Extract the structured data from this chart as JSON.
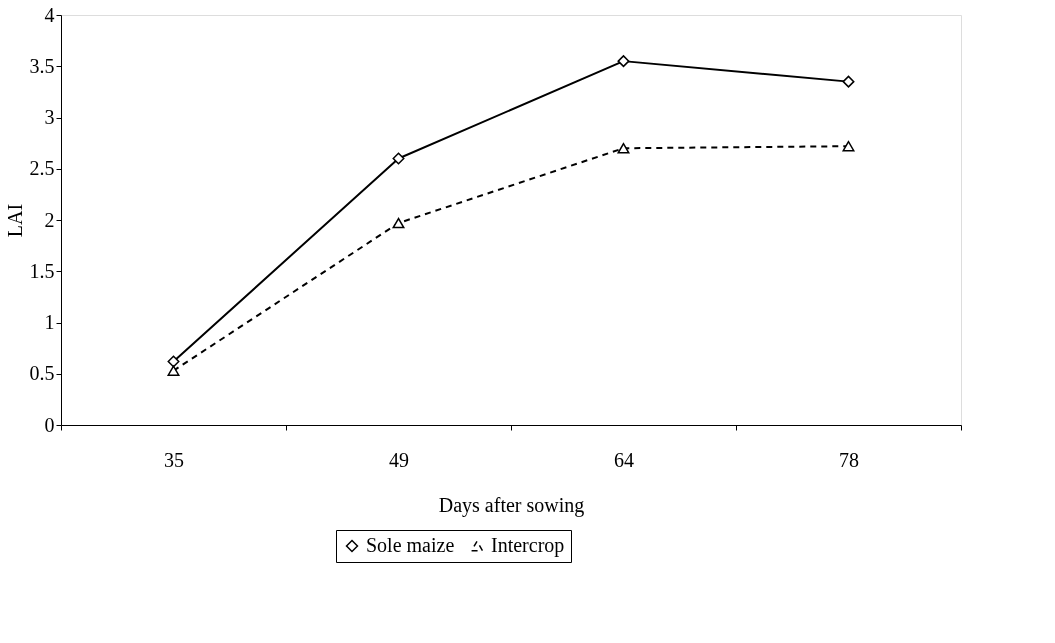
{
  "chart_data": {
    "type": "line",
    "xlabel": "Days after sowing",
    "ylabel": "LAI",
    "categories": [
      "35",
      "49",
      "64",
      "78"
    ],
    "series": [
      {
        "name": "Sole maize",
        "color": "#000000",
        "values": [
          0.62,
          2.6,
          3.55,
          3.35
        ],
        "marker": "diamond",
        "line_style": "solid"
      },
      {
        "name": "Intercrop",
        "color": "#000000",
        "values": [
          0.53,
          1.97,
          2.7,
          2.72
        ],
        "marker": "triangle",
        "line_style": "dashed"
      }
    ],
    "ylim": [
      0,
      4
    ],
    "yticks": [
      0,
      0.5,
      1,
      1.5,
      2,
      2.5,
      3,
      3.5,
      4
    ],
    "grid": false,
    "legend": "bottom"
  }
}
